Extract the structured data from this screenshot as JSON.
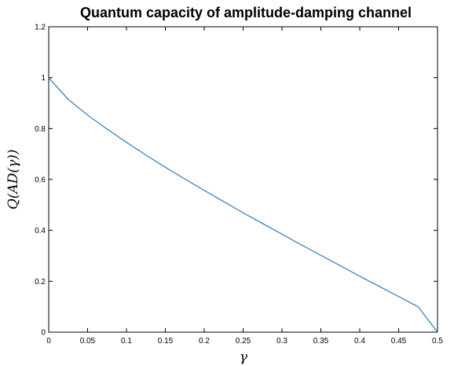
{
  "chart_data": {
    "type": "line",
    "title": "Quantum capacity of amplitude-damping channel",
    "xlabel": "γ",
    "ylabel": "Q(AD(γ))",
    "xlim": [
      0,
      0.5
    ],
    "ylim": [
      0,
      1.2
    ],
    "xticks": [
      0,
      0.05,
      0.1,
      0.15,
      0.2,
      0.25,
      0.3,
      0.35,
      0.4,
      0.45,
      0.5
    ],
    "xtick_labels": [
      "0",
      "0.05",
      "0.1",
      "0.15",
      "0.2",
      "0.25",
      "0.3",
      "0.35",
      "0.4",
      "0.45",
      "0.5"
    ],
    "yticks": [
      0,
      0.2,
      0.4,
      0.6,
      0.8,
      1,
      1.2
    ],
    "ytick_labels": [
      "0",
      "0.2",
      "0.4",
      "0.6",
      "0.8",
      "1",
      "1.2"
    ],
    "grid": false,
    "line_color": "#2a7ab8",
    "series": [
      {
        "x": [
          0,
          0.025,
          0.05,
          0.075,
          0.1,
          0.125,
          0.15,
          0.175,
          0.2,
          0.225,
          0.25,
          0.275,
          0.3,
          0.325,
          0.35,
          0.375,
          0.4,
          0.425,
          0.45,
          0.475,
          0.5
        ],
        "values": [
          1.0,
          0.915,
          0.853,
          0.798,
          0.746,
          0.696,
          0.648,
          0.602,
          0.557,
          0.513,
          0.469,
          0.427,
          0.385,
          0.343,
          0.302,
          0.261,
          0.22,
          0.18,
          0.14,
          0.1,
          0.0
        ]
      }
    ]
  }
}
